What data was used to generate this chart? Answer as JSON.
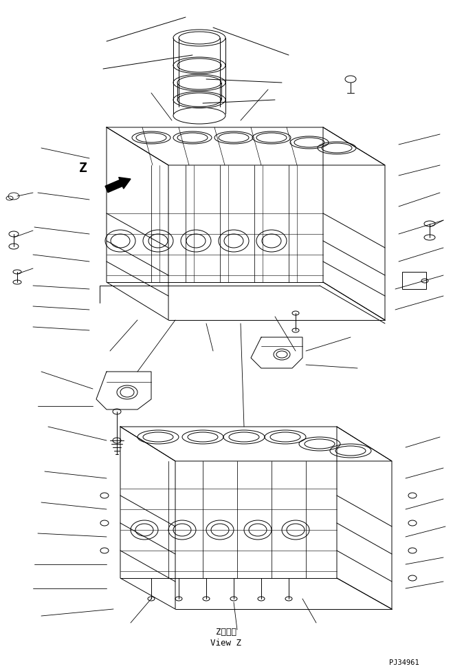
{
  "bg_color": "#ffffff",
  "line_color": "#000000",
  "fig_width": 6.59,
  "fig_height": 9.75,
  "bottom_label_1": "Z　　視",
  "bottom_label_2": "View Z",
  "part_code": "PJ34961",
  "z_label": "Z",
  "arrow_label": "►"
}
